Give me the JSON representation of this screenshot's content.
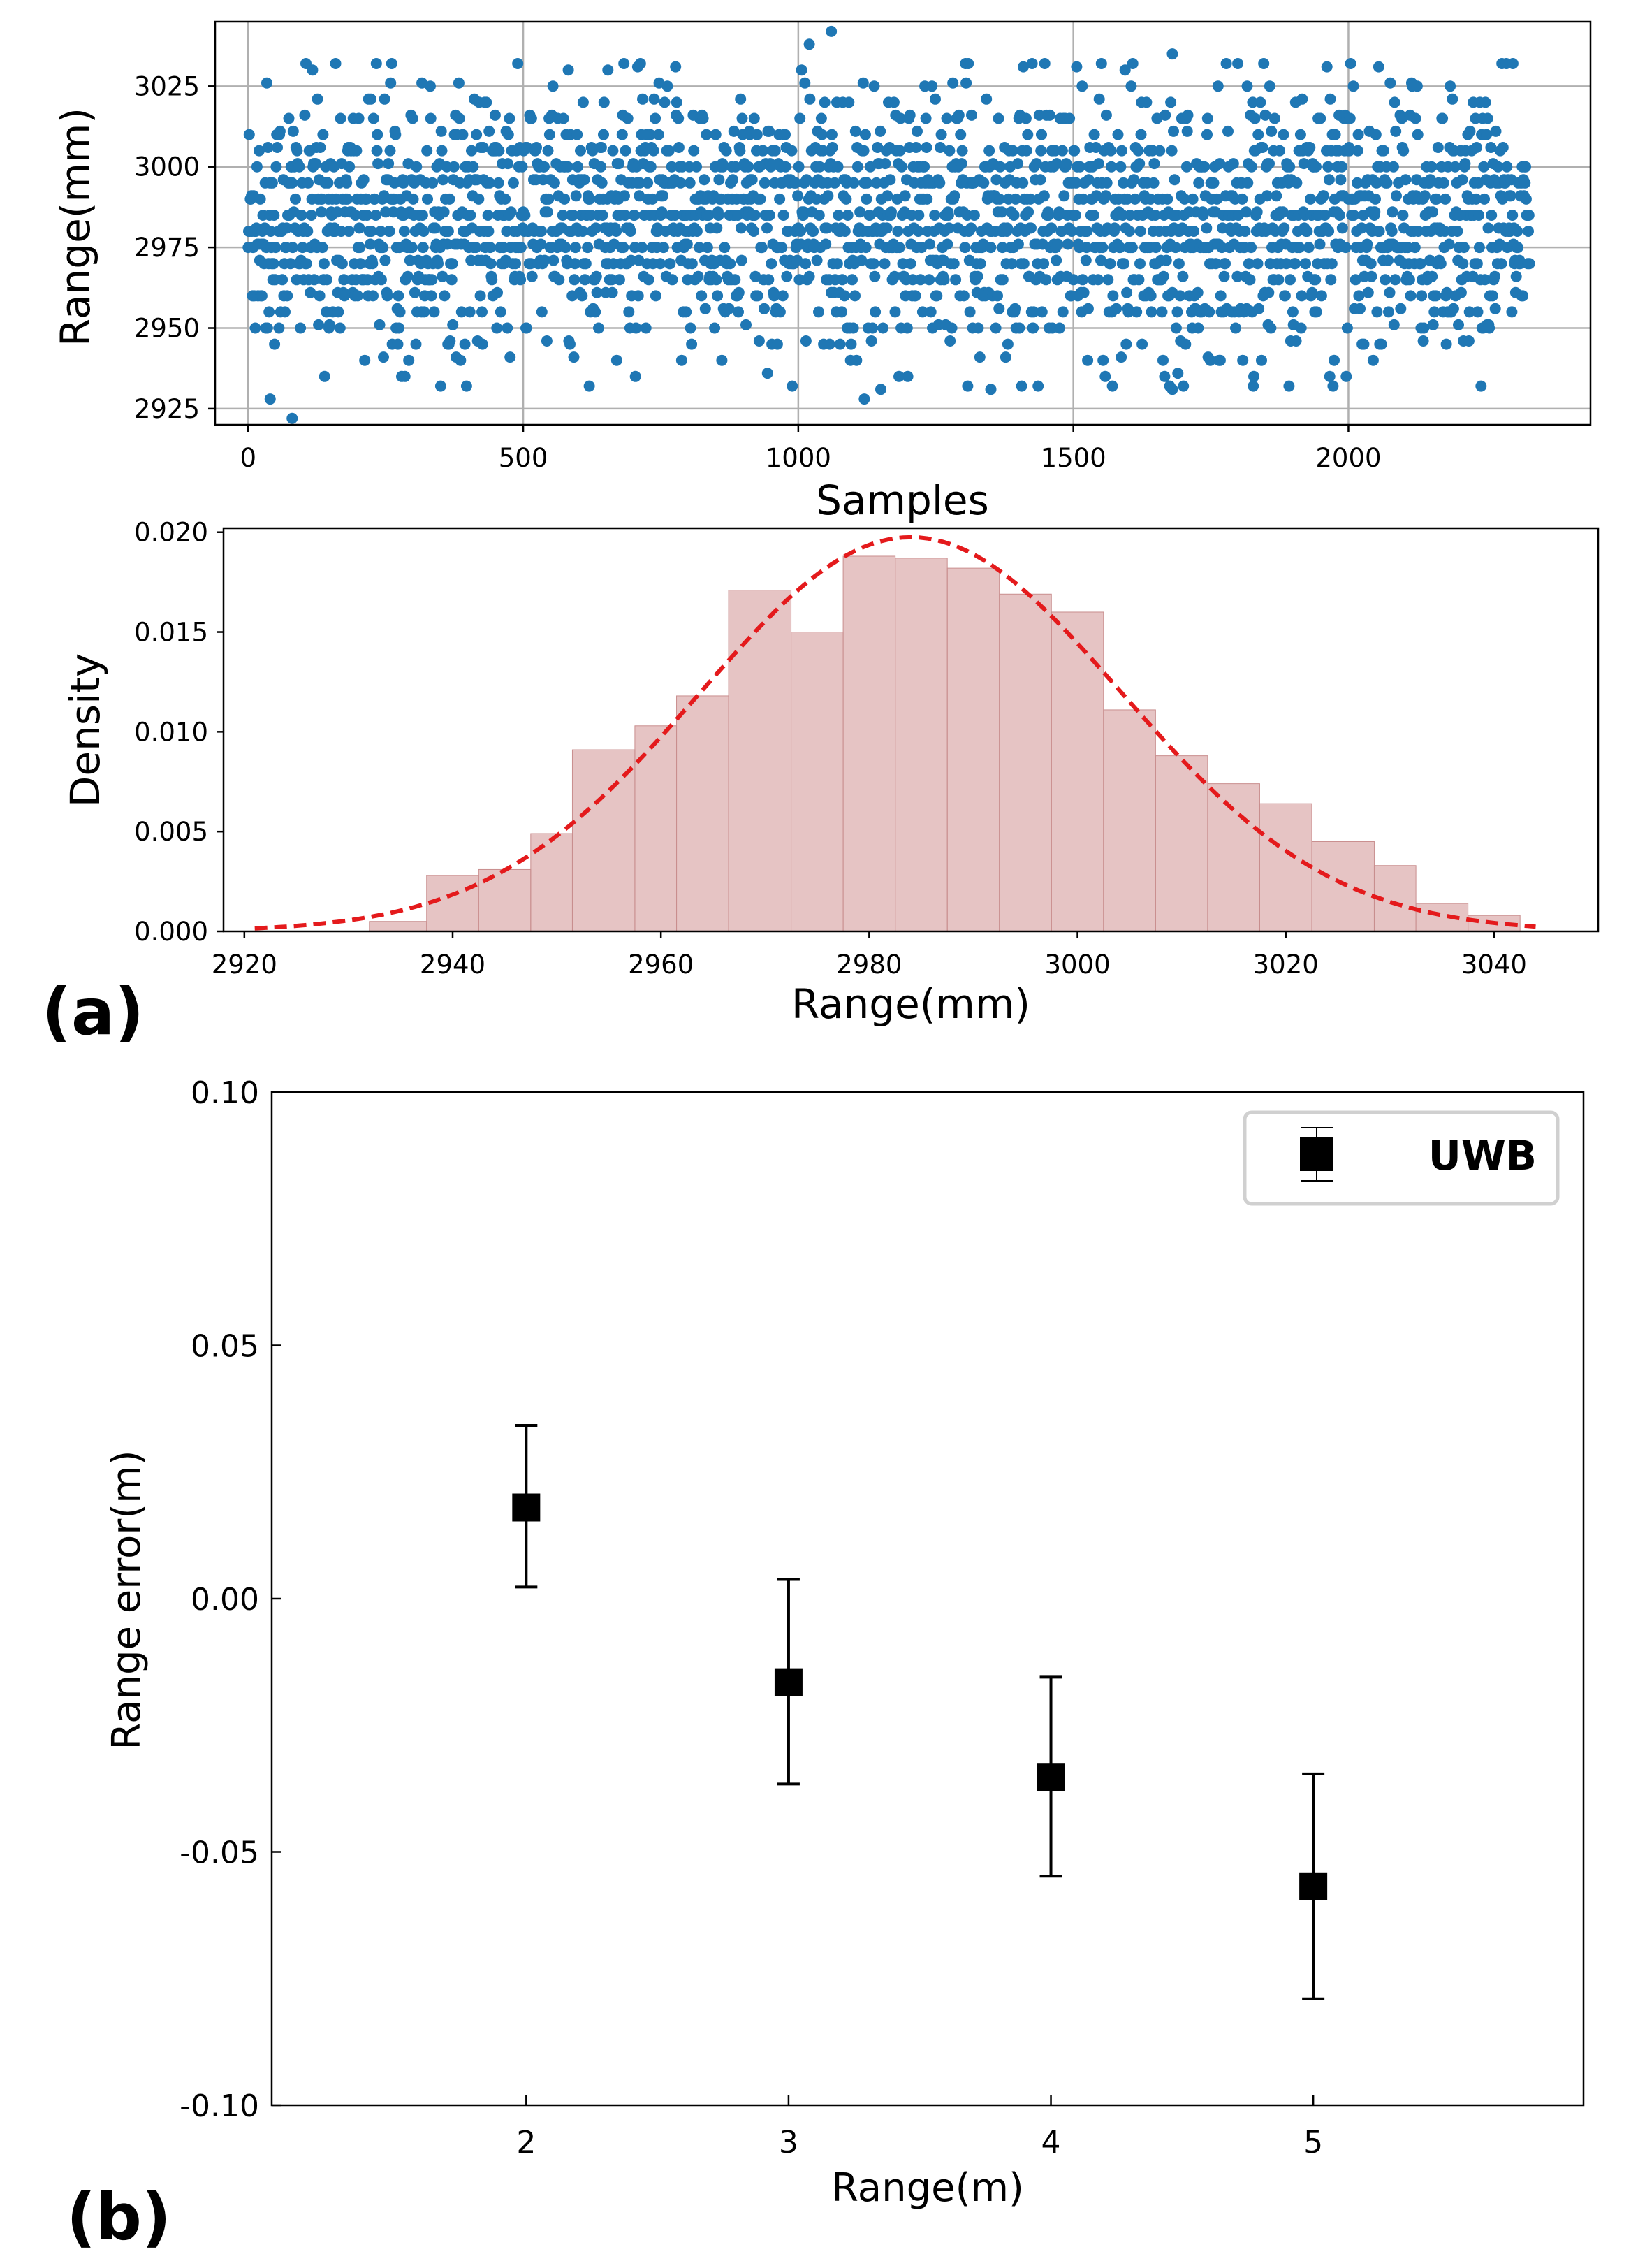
{
  "chart_data": [
    {
      "id": "scatter",
      "type": "scatter",
      "title": "",
      "xlabel": "Samples",
      "ylabel": "Range(mm)",
      "xlim": [
        -60,
        2440
      ],
      "ylim": [
        2920,
        3045
      ],
      "xticks": [
        0,
        500,
        1000,
        1500,
        2000
      ],
      "yticks": [
        2925,
        2950,
        2975,
        3000,
        3025
      ],
      "xtick_labels": [
        "0",
        "500",
        "1000",
        "1500",
        "2000"
      ],
      "ytick_labels": [
        "2925",
        "2950",
        "2975",
        "3000",
        "3025"
      ],
      "grid": true,
      "color": "#1f77b4",
      "n_samples": 2330,
      "mean": 2983,
      "std": 20,
      "value_step": 5,
      "range_min": 2922,
      "range_max": 3042,
      "notable_points": [
        {
          "x": 80,
          "y": 2922
        },
        {
          "x": 40,
          "y": 2928
        },
        {
          "x": 1060,
          "y": 3042
        },
        {
          "x": 1020,
          "y": 3038
        },
        {
          "x": 1120,
          "y": 2928
        },
        {
          "x": 1150,
          "y": 2931
        },
        {
          "x": 1680,
          "y": 2931
        },
        {
          "x": 1680,
          "y": 3035
        },
        {
          "x": 1350,
          "y": 2931
        }
      ]
    },
    {
      "id": "histogram",
      "type": "bar",
      "title": "",
      "xlabel": "Range(mm)",
      "ylabel": "Density",
      "xlim": [
        2918,
        3050
      ],
      "ylim": [
        0,
        0.0202
      ],
      "xticks": [
        2920,
        2940,
        2960,
        2980,
        3000,
        3020,
        3040
      ],
      "yticks": [
        0.0,
        0.005,
        0.01,
        0.015,
        0.02
      ],
      "xtick_labels": [
        "2920",
        "2940",
        "2960",
        "2980",
        "3000",
        "3020",
        "3040"
      ],
      "ytick_labels": [
        "0.000",
        "0.005",
        "0.010",
        "0.015",
        "0.020"
      ],
      "bar_color": "#c77d7d",
      "bins": [
        {
          "x0": 2932,
          "x1": 2937.5,
          "density": 0.0005
        },
        {
          "x0": 2937.5,
          "x1": 2942.5,
          "density": 0.0028
        },
        {
          "x0": 2942.5,
          "x1": 2947.5,
          "density": 0.0031
        },
        {
          "x0": 2947.5,
          "x1": 2951.5,
          "density": 0.0049
        },
        {
          "x0": 2951.5,
          "x1": 2957.5,
          "density": 0.0091
        },
        {
          "x0": 2957.5,
          "x1": 2961.5,
          "density": 0.0103
        },
        {
          "x0": 2961.5,
          "x1": 2966.5,
          "density": 0.0118
        },
        {
          "x0": 2966.5,
          "x1": 2972.5,
          "density": 0.0171
        },
        {
          "x0": 2972.5,
          "x1": 2977.5,
          "density": 0.015
        },
        {
          "x0": 2977.5,
          "x1": 2982.5,
          "density": 0.0188
        },
        {
          "x0": 2982.5,
          "x1": 2987.5,
          "density": 0.0187
        },
        {
          "x0": 2987.5,
          "x1": 2992.5,
          "density": 0.0182
        },
        {
          "x0": 2992.5,
          "x1": 2997.5,
          "density": 0.0169
        },
        {
          "x0": 2997.5,
          "x1": 3002.5,
          "density": 0.016
        },
        {
          "x0": 3002.5,
          "x1": 3007.5,
          "density": 0.0111
        },
        {
          "x0": 3007.5,
          "x1": 3012.5,
          "density": 0.0088
        },
        {
          "x0": 3012.5,
          "x1": 3017.5,
          "density": 0.0074
        },
        {
          "x0": 3017.5,
          "x1": 3022.5,
          "density": 0.0064
        },
        {
          "x0": 3022.5,
          "x1": 3028.5,
          "density": 0.0045
        },
        {
          "x0": 3028.5,
          "x1": 3032.5,
          "density": 0.0033
        },
        {
          "x0": 3032.5,
          "x1": 3037.5,
          "density": 0.0014
        },
        {
          "x0": 3037.5,
          "x1": 3042.5,
          "density": 0.0008
        }
      ],
      "fit": {
        "type": "normal",
        "mean": 2984,
        "std": 20.2,
        "x_from": 2921,
        "x_to": 3044,
        "color": "#e41a1c",
        "style": "dashed"
      }
    },
    {
      "id": "error",
      "type": "scatter",
      "title": "",
      "xlabel": "Range(m)",
      "ylabel": "Range error(m)",
      "xlim": [
        1.03,
        6.03
      ],
      "ylim": [
        -0.1,
        0.1
      ],
      "xticks": [
        2,
        3,
        4,
        5
      ],
      "yticks": [
        -0.1,
        -0.05,
        0.0,
        0.05,
        0.1
      ],
      "xtick_labels": [
        "2",
        "3",
        "4",
        "5"
      ],
      "ytick_labels": [
        "-0.10",
        "-0.05",
        "0.00",
        "0.05",
        "0.10"
      ],
      "series": [
        {
          "name": "UWB",
          "marker": "square",
          "color": "#000000",
          "points": [
            {
              "x": 2,
              "y": 0.018,
              "lower": 0.0023,
              "upper": 0.0342
            },
            {
              "x": 3,
              "y": -0.0165,
              "lower": -0.0366,
              "upper": 0.0038
            },
            {
              "x": 4,
              "y": -0.0352,
              "lower": -0.0548,
              "upper": -0.0155
            },
            {
              "x": 5,
              "y": -0.0568,
              "lower": -0.079,
              "upper": -0.0346
            }
          ]
        }
      ],
      "legend": {
        "position": "top-right",
        "entries": [
          "UWB"
        ]
      }
    }
  ],
  "panels": {
    "a": "(a)",
    "b": "(b)"
  }
}
